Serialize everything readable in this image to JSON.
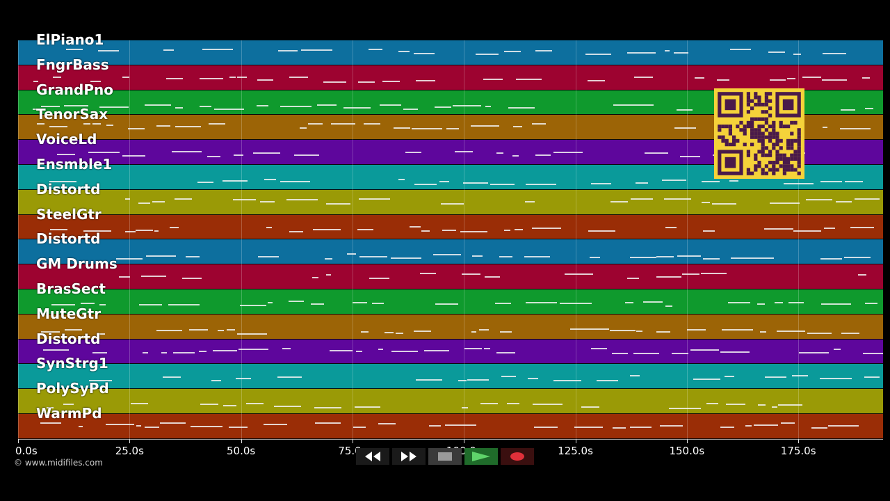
{
  "tracks": [
    {
      "name": "ElPiano1",
      "color": "#0d6f9e"
    },
    {
      "name": "FngrBass",
      "color": "#9d0330"
    },
    {
      "name": "GrandPno",
      "color": "#0f9a2d"
    },
    {
      "name": "TenorSax",
      "color": "#9c6406"
    },
    {
      "name": "VoiceLd",
      "color": "#5e069c"
    },
    {
      "name": "Ensmble1",
      "color": "#0a9a9a"
    },
    {
      "name": "Distortd",
      "color": "#9a9a06"
    },
    {
      "name": "SteelGtr",
      "color": "#9a2d06"
    },
    {
      "name": "Distortd",
      "color": "#0d6f9e"
    },
    {
      "name": "GM Drums",
      "color": "#9d0330"
    },
    {
      "name": "BrasSect",
      "color": "#0f9a2d"
    },
    {
      "name": "MuteGtr",
      "color": "#9c6406"
    },
    {
      "name": "Distortd",
      "color": "#5e069c"
    },
    {
      "name": "SynStrg1",
      "color": "#0a9a9a"
    },
    {
      "name": "PolySyPd",
      "color": "#9a9a06"
    },
    {
      "name": "WarmPd",
      "color": "#9a2d06"
    }
  ],
  "timeline": {
    "ticks": [
      "0.0s",
      "25.0s",
      "50.0s",
      "75.0s",
      "100.0s",
      "125.0s",
      "150.0s",
      "175.0s"
    ],
    "max_seconds": 194
  },
  "credit": "© www.midifiles.com",
  "controls": [
    {
      "name": "rewind-button",
      "icon": "rewind-icon"
    },
    {
      "name": "fast-forward-button",
      "icon": "fast-forward-icon"
    },
    {
      "name": "stop-button",
      "icon": "stop-icon"
    },
    {
      "name": "play-button",
      "icon": "play-icon"
    },
    {
      "name": "record-button",
      "icon": "record-icon"
    }
  ]
}
